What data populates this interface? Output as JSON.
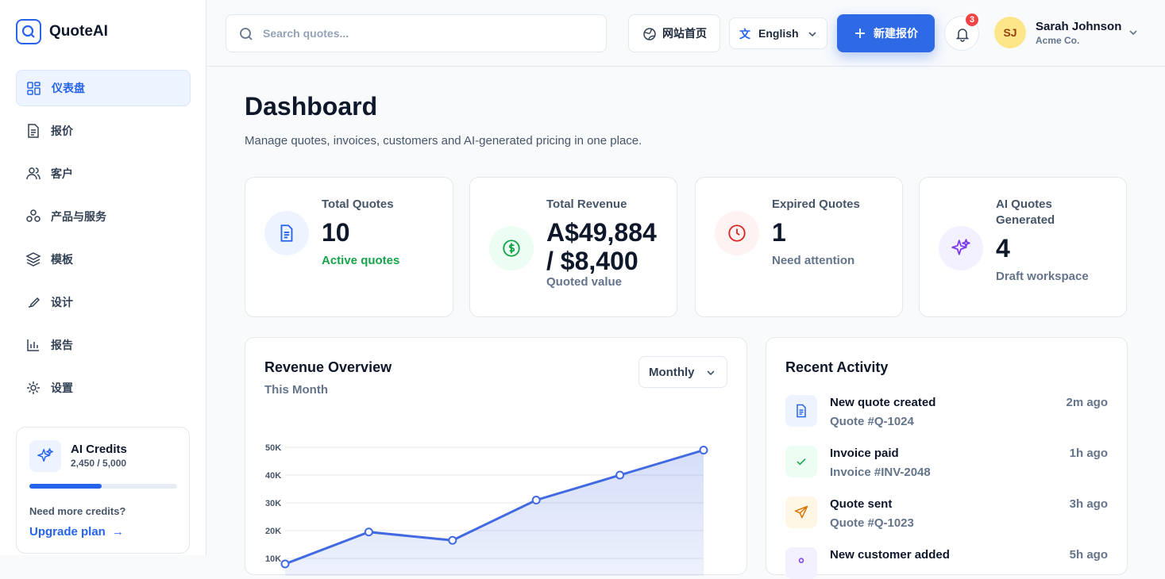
{
  "sidebar": {
    "brand": "QuoteAI",
    "nav": [
      "仪表盘",
      "报价",
      "客户",
      "产品与服务",
      "模板",
      "设计",
      "报告",
      "设置"
    ],
    "credits": {
      "title": "AI Credits",
      "label": "2,450 / 5,000",
      "used": 2450,
      "total": 5000,
      "prompt": "Need more credits?",
      "link": "Upgrade plan"
    }
  },
  "topbar": {
    "search_placeholder": "Search quotes...",
    "website": "网站首页",
    "language": "English",
    "new_quote": "新建报价",
    "notifications": 3,
    "user": {
      "initials": "SJ",
      "name": "Sarah Johnson",
      "company": "Acme Co."
    }
  },
  "header": {
    "title": "Dashboard",
    "subtitle": "Manage quotes, invoices, customers and AI-generated pricing in one place."
  },
  "stats": [
    {
      "label": "Total Quotes",
      "value": "10",
      "note": "Active quotes"
    },
    {
      "label": "Total Revenue",
      "value": "A$49,884 / $8,400",
      "note": "Quoted value"
    },
    {
      "label": "Expired Quotes",
      "value": "1",
      "note": "Need attention"
    },
    {
      "label": "AI Quotes Generated",
      "value": "4",
      "note": "Draft workspace"
    }
  ],
  "chart_data": {
    "type": "line",
    "title": "Revenue Overview",
    "subtitle": "This Month",
    "period": "Monthly",
    "categories": [
      null,
      null,
      null,
      null,
      null,
      null
    ],
    "values": [
      8000,
      19500,
      16500,
      31000,
      40000,
      49000
    ],
    "color": "#4169e1",
    "ylim": [
      0,
      50000
    ],
    "yticks": [
      {
        "value": 10000,
        "label": "10K"
      },
      {
        "value": 20000,
        "label": "20K"
      },
      {
        "value": 30000,
        "label": "30K"
      },
      {
        "value": 40000,
        "label": "40K"
      },
      {
        "value": 50000,
        "label": "50K"
      }
    ],
    "grid": true
  },
  "activity": {
    "title": "Recent Activity",
    "items": [
      {
        "title": "New quote created",
        "detail": "Quote #Q-1024",
        "time": "2m ago"
      },
      {
        "title": "Invoice paid",
        "detail": "Invoice #INV-2048",
        "time": "1h ago"
      },
      {
        "title": "Quote sent",
        "detail": "Quote #Q-1023",
        "time": "3h ago"
      },
      {
        "title": "New customer added",
        "detail": "",
        "time": "5h ago"
      }
    ]
  }
}
